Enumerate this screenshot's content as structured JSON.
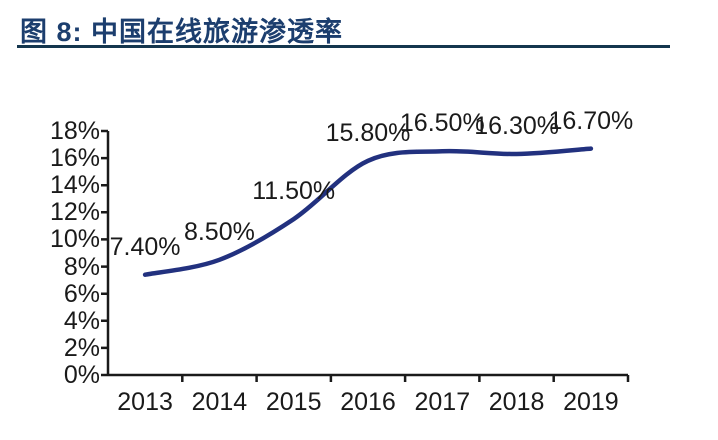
{
  "figure": {
    "title": "图 8: 中国在线旅游渗透率"
  },
  "chart_data": {
    "type": "line",
    "title": "中国在线旅游渗透率",
    "xlabel": "",
    "ylabel": "",
    "categories": [
      "2013",
      "2014",
      "2015",
      "2016",
      "2017",
      "2018",
      "2019"
    ],
    "series": [
      {
        "name": "中国在线旅游渗透率",
        "values": [
          7.4,
          8.5,
          11.5,
          15.8,
          16.5,
          16.3,
          16.7
        ]
      }
    ],
    "data_labels": [
      "7.40%",
      "8.50%",
      "11.50%",
      "15.80%",
      "16.50%",
      "16.30%",
      "16.70%"
    ],
    "y_tick_labels": [
      "0%",
      "2%",
      "4%",
      "6%",
      "8%",
      "10%",
      "12%",
      "14%",
      "16%",
      "18%"
    ],
    "y_tick_values": [
      0,
      2,
      4,
      6,
      8,
      10,
      12,
      14,
      16,
      18
    ],
    "ylim": [
      0,
      18
    ],
    "grid": false,
    "legend": false,
    "smooth": true,
    "line_color": "#22317f"
  },
  "colors": {
    "title": "#1c3e6e",
    "rule": "#14364e",
    "axis": "#1a1a1a",
    "line": "#22317f",
    "label_text": "#1a1a1a",
    "background": "#ffffff"
  }
}
